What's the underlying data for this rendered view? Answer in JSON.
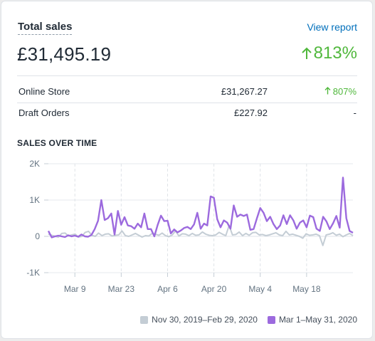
{
  "card": {
    "title": "Total sales",
    "view_report": "View report",
    "total": "£31,495.19",
    "growth": "813%"
  },
  "breakdown": [
    {
      "name": "Online Store",
      "amount": "£31,267.27",
      "change": "807%",
      "direction": "up"
    },
    {
      "name": "Draft Orders",
      "amount": "£227.92",
      "change": "-",
      "direction": "none"
    }
  ],
  "colors": {
    "accent_link": "#006fbb",
    "positive": "#50b83c",
    "current_series": "#9c6ade",
    "previous_series": "#c4cdd5"
  },
  "chart_data": {
    "type": "line",
    "title": "SALES OVER TIME",
    "xlabel": "",
    "ylabel": "",
    "ylim": [
      -1000,
      2000
    ],
    "yticks": [
      "2K",
      "1K",
      "0",
      "-1K"
    ],
    "x_tick_labels": [
      "Mar 9",
      "Mar 23",
      "Apr 6",
      "Apr 20",
      "May 4",
      "May 18"
    ],
    "x_tick_days": [
      8,
      22,
      36,
      50,
      64,
      78
    ],
    "grid": true,
    "legend_position": "bottom-right",
    "series": [
      {
        "name": "Nov 30, 2019–Feb 29, 2020",
        "color": "#c4cdd5",
        "values": [
          60,
          30,
          0,
          -20,
          80,
          90,
          10,
          40,
          60,
          -20,
          0,
          110,
          140,
          30,
          0,
          90,
          20,
          60,
          70,
          10,
          30,
          40,
          150,
          20,
          0,
          40,
          80,
          30,
          -20,
          20,
          10,
          80,
          60,
          30,
          90,
          20,
          -10,
          40,
          150,
          10,
          70,
          60,
          20,
          80,
          30,
          40,
          120,
          60,
          30,
          20,
          40,
          110,
          60,
          20,
          300,
          40,
          50,
          120,
          20,
          80,
          30,
          100,
          110,
          40,
          50,
          20,
          40,
          70,
          100,
          40,
          20,
          140,
          40,
          60,
          30,
          0,
          -50,
          70,
          30,
          40,
          60,
          20,
          -250,
          40,
          60,
          100,
          30,
          60,
          -10,
          40,
          80,
          20
        ]
      },
      {
        "name": "Mar 1–May 31, 2020",
        "color": "#9c6ade",
        "values": [
          150,
          -30,
          0,
          20,
          0,
          -20,
          30,
          0,
          20,
          -10,
          50,
          0,
          -10,
          40,
          200,
          430,
          1000,
          450,
          500,
          630,
          50,
          700,
          320,
          530,
          300,
          280,
          210,
          350,
          250,
          630,
          200,
          200,
          0,
          310,
          570,
          420,
          430,
          80,
          190,
          110,
          160,
          230,
          260,
          200,
          330,
          650,
          210,
          350,
          300,
          1100,
          1060,
          470,
          250,
          440,
          380,
          210,
          850,
          540,
          600,
          560,
          600,
          180,
          200,
          500,
          780,
          650,
          420,
          540,
          340,
          200,
          300,
          580,
          340,
          580,
          440,
          210,
          380,
          440,
          250,
          570,
          530,
          210,
          150,
          540,
          410,
          200,
          360,
          560,
          240,
          1620,
          500,
          150,
          100
        ]
      }
    ]
  }
}
